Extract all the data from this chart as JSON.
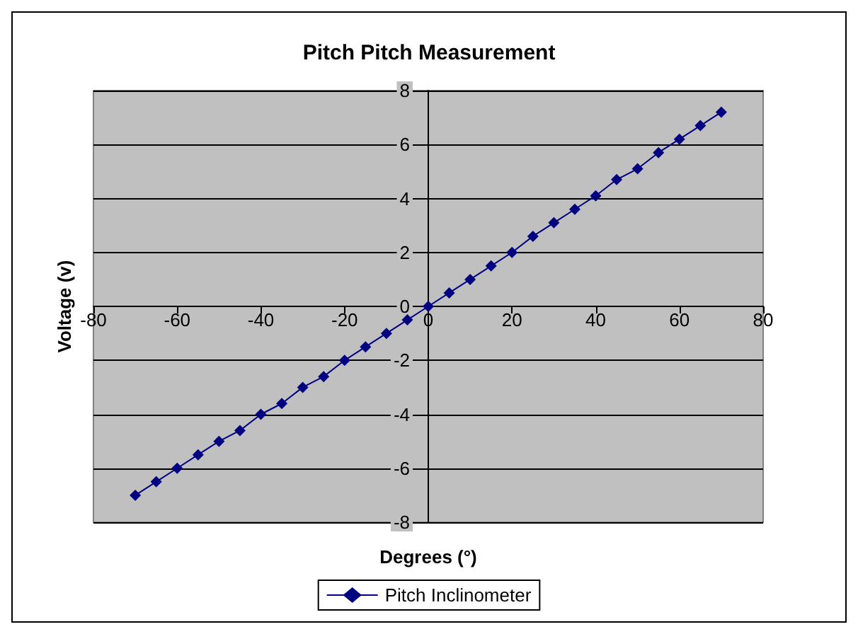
{
  "chart_data": {
    "type": "line",
    "title": "Pitch Pitch Measurement",
    "xlabel": "Degrees (°)",
    "ylabel": "Voltage (v)",
    "x": [
      -70,
      -65,
      -60,
      -55,
      -50,
      -45,
      -40,
      -35,
      -30,
      -25,
      -20,
      -15,
      -10,
      -5,
      0,
      5,
      10,
      15,
      20,
      25,
      30,
      35,
      40,
      45,
      50,
      55,
      60,
      65,
      70
    ],
    "series": [
      {
        "name": "Pitch Inclinometer",
        "color": "#000080",
        "values": [
          -7.0,
          -6.5,
          -6.0,
          -5.5,
          -5.0,
          -4.6,
          -4.0,
          -3.6,
          -3.0,
          -2.6,
          -2.0,
          -1.5,
          -1.0,
          -0.5,
          0,
          0.5,
          1.0,
          1.5,
          2.0,
          2.6,
          3.1,
          3.6,
          4.1,
          4.7,
          5.1,
          5.7,
          6.2,
          6.7,
          7.2
        ]
      }
    ],
    "xlim": [
      -80,
      80
    ],
    "xticks": [
      -80,
      -60,
      -40,
      -20,
      0,
      20,
      40,
      60,
      80
    ],
    "ylim": [
      -8,
      8
    ],
    "yticks": [
      -8,
      -6,
      -4,
      -2,
      0,
      2,
      4,
      6,
      8
    ],
    "grid": "y",
    "legend": "bottom",
    "marker": "diamond",
    "line_style": "solid"
  }
}
